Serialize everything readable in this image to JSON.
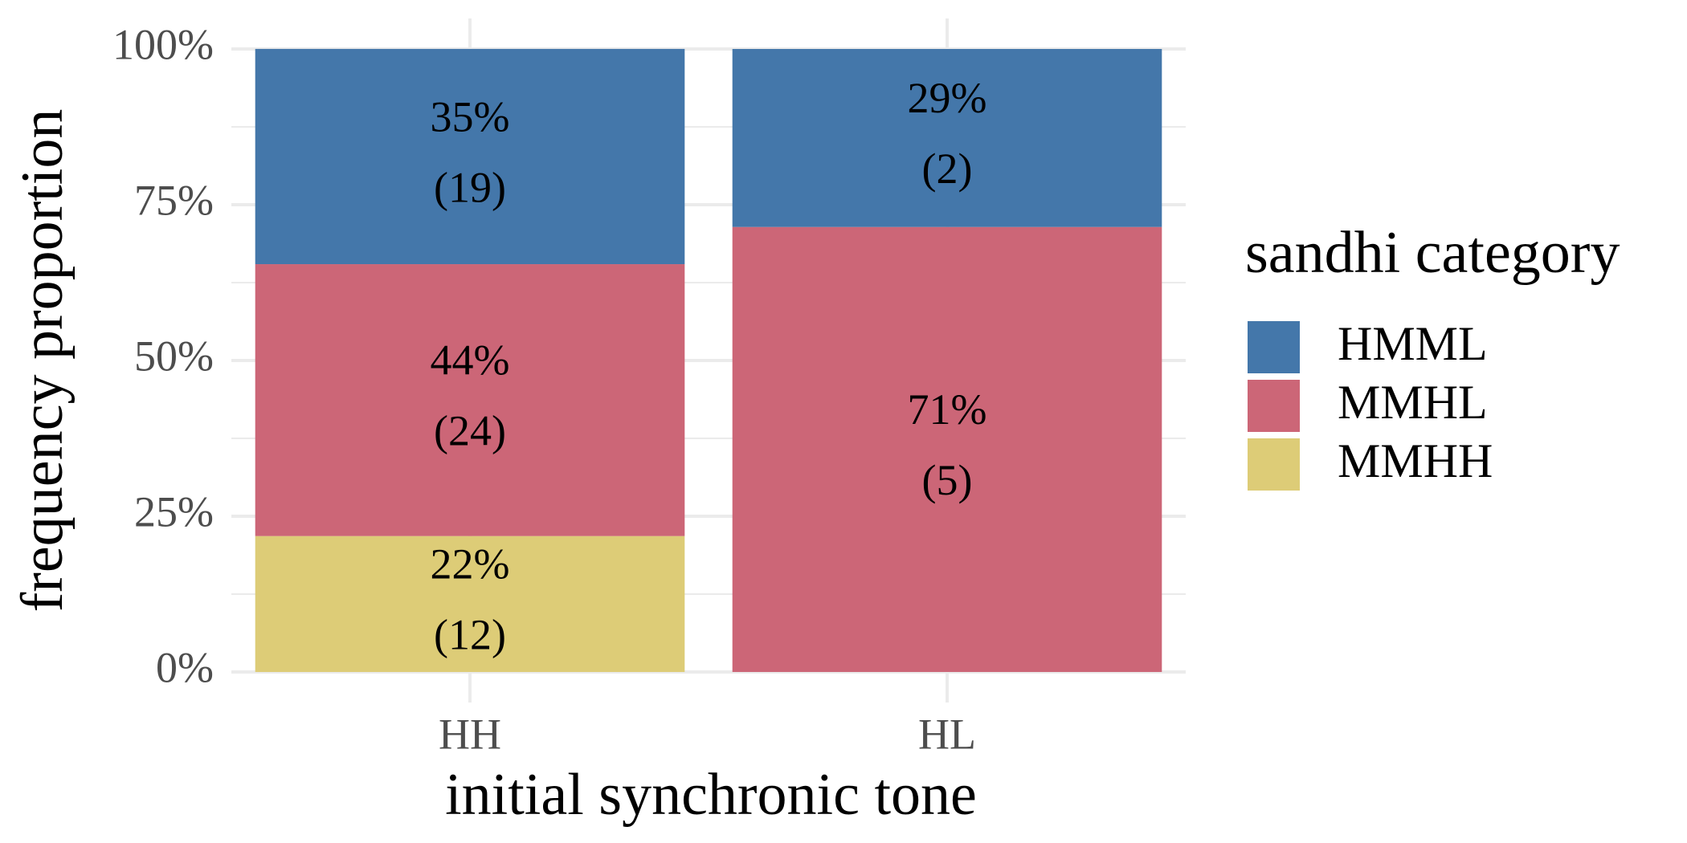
{
  "chart_data": {
    "type": "stacked_bar",
    "x_label": "initial synchronic tone",
    "y_label": "frequency proportion",
    "legend_title": "sandhi category",
    "legend_position": "right",
    "grid": true,
    "categories": [
      "HH",
      "HL"
    ],
    "ylim": [
      0,
      100
    ],
    "yticks": [
      {
        "value": 0,
        "label": "0%"
      },
      {
        "value": 25,
        "label": "25%"
      },
      {
        "value": 50,
        "label": "50%"
      },
      {
        "value": 75,
        "label": "75%"
      },
      {
        "value": 100,
        "label": "100%"
      }
    ],
    "series": [
      {
        "name": "HMML",
        "color": "#4477aa",
        "values": [
          34.55,
          28.57
        ],
        "value_labels": [
          "35%",
          "29%"
        ],
        "count_labels": [
          "(19)",
          "(2)"
        ]
      },
      {
        "name": "MMHL",
        "color": "#cc6677",
        "values": [
          43.64,
          71.43
        ],
        "value_labels": [
          "44%",
          "71%"
        ],
        "count_labels": [
          "(24)",
          "(5)"
        ]
      },
      {
        "name": "MMHH",
        "color": "#ddcc77",
        "values": [
          21.82,
          0
        ],
        "value_labels": [
          "22%",
          null
        ],
        "count_labels": [
          "(12)",
          null
        ]
      }
    ]
  }
}
